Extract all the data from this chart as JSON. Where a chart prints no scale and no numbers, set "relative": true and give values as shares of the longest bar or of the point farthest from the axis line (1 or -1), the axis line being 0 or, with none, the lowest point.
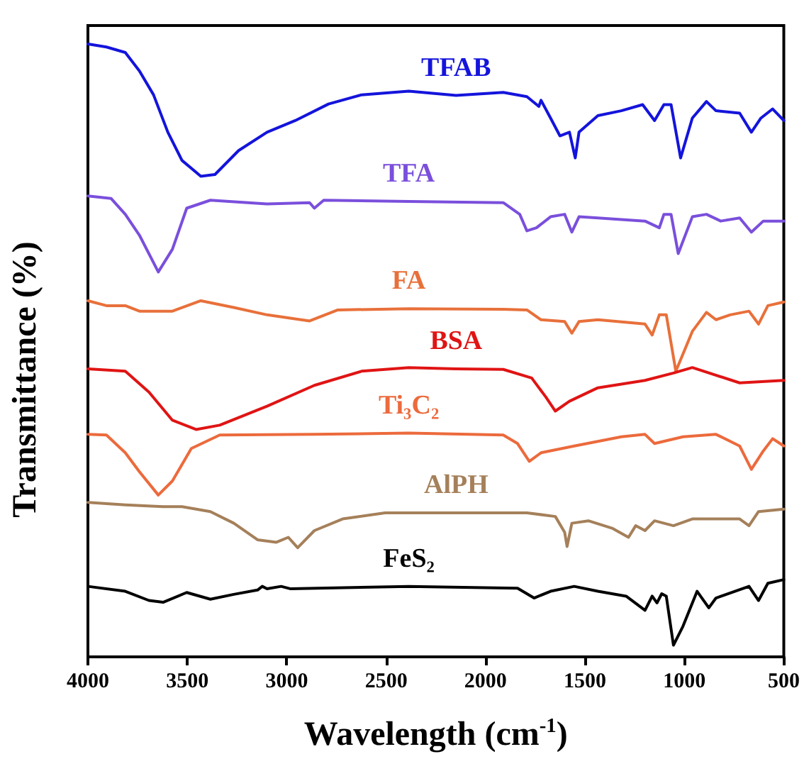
{
  "chart_data": {
    "type": "line",
    "relative": true,
    "xlabel": "Wavelength (cm$^{-1}$)",
    "ylabel": "Transmittance (%)",
    "xlim": [
      4000,
      500
    ],
    "xticks": [
      4000,
      3500,
      3000,
      2500,
      2000,
      1500,
      1000,
      500
    ],
    "grid": false,
    "legend": false,
    "series": [
      {
        "name": "TFAB",
        "color": "#1414dc",
        "x": [
          4000,
          3907,
          3812,
          3741,
          3670,
          3598,
          3527,
          3432,
          3361,
          3242,
          3099,
          2957,
          2790,
          2624,
          2386,
          2148,
          1911,
          1792,
          1732,
          1721,
          1673,
          1626,
          1578,
          1549,
          1530,
          1435,
          1317,
          1210,
          1150,
          1103,
          1067,
          1019,
          960,
          889,
          841,
          722,
          663,
          615,
          556,
          500
        ],
        "values": [
          1.0,
          0.995,
          0.986,
          0.956,
          0.917,
          0.856,
          0.81,
          0.784,
          0.787,
          0.826,
          0.856,
          0.875,
          0.902,
          0.917,
          0.923,
          0.916,
          0.921,
          0.914,
          0.898,
          0.908,
          0.879,
          0.85,
          0.856,
          0.814,
          0.856,
          0.883,
          0.891,
          0.901,
          0.875,
          0.901,
          0.901,
          0.814,
          0.879,
          0.906,
          0.891,
          0.887,
          0.856,
          0.879,
          0.894,
          0.875
        ]
      },
      {
        "name": "TFA",
        "color": "#7a4fdc",
        "x": [
          4000,
          3884,
          3812,
          3741,
          3646,
          3575,
          3503,
          3384,
          3099,
          2885,
          2861,
          2814,
          2386,
          1911,
          1828,
          1792,
          1744,
          1673,
          1602,
          1566,
          1530,
          1435,
          1198,
          1126,
          1103,
          1067,
          1031,
          960,
          889,
          817,
          722,
          663,
          603,
          500
        ],
        "values": [
          0.752,
          0.748,
          0.722,
          0.688,
          0.628,
          0.665,
          0.732,
          0.745,
          0.739,
          0.741,
          0.732,
          0.745,
          0.743,
          0.741,
          0.722,
          0.695,
          0.7,
          0.718,
          0.722,
          0.693,
          0.718,
          0.716,
          0.711,
          0.7,
          0.722,
          0.722,
          0.658,
          0.718,
          0.722,
          0.711,
          0.716,
          0.693,
          0.711,
          0.711
        ]
      },
      {
        "name": "FA",
        "color": "#e8703a",
        "x": [
          4000,
          3907,
          3812,
          3741,
          3575,
          3432,
          3266,
          3099,
          2885,
          2743,
          2386,
          1911,
          1792,
          1721,
          1602,
          1566,
          1530,
          1435,
          1198,
          1162,
          1126,
          1091,
          1043,
          960,
          889,
          841,
          770,
          675,
          627,
          580,
          500
        ],
        "values": [
          0.581,
          0.573,
          0.573,
          0.564,
          0.564,
          0.581,
          0.57,
          0.558,
          0.548,
          0.566,
          0.568,
          0.567,
          0.566,
          0.55,
          0.547,
          0.528,
          0.547,
          0.55,
          0.543,
          0.525,
          0.558,
          0.558,
          0.466,
          0.531,
          0.562,
          0.55,
          0.558,
          0.564,
          0.543,
          0.573,
          0.579
        ]
      },
      {
        "name": "BSA",
        "color": "#e01414",
        "x": [
          4000,
          3812,
          3693,
          3575,
          3456,
          3337,
          3099,
          2861,
          2624,
          2386,
          2148,
          1911,
          1768,
          1697,
          1649,
          1578,
          1435,
          1198,
          1055,
          960,
          722,
          500
        ],
        "values": [
          0.47,
          0.466,
          0.432,
          0.386,
          0.371,
          0.378,
          0.409,
          0.443,
          0.466,
          0.472,
          0.47,
          0.469,
          0.455,
          0.424,
          0.401,
          0.417,
          0.439,
          0.451,
          0.463,
          0.472,
          0.447,
          0.451
        ]
      },
      {
        "name": "Ti₃C₂",
        "color": "#ec6a3c",
        "x": [
          4000,
          3907,
          3812,
          3741,
          3646,
          3575,
          3480,
          3337,
          2861,
          2386,
          1911,
          1839,
          1780,
          1721,
          1554,
          1317,
          1198,
          1150,
          1007,
          841,
          722,
          663,
          603,
          556,
          500
        ],
        "values": [
          0.363,
          0.362,
          0.333,
          0.302,
          0.264,
          0.287,
          0.34,
          0.362,
          0.363,
          0.365,
          0.362,
          0.348,
          0.319,
          0.333,
          0.344,
          0.359,
          0.363,
          0.348,
          0.359,
          0.363,
          0.344,
          0.306,
          0.336,
          0.356,
          0.344
        ]
      },
      {
        "name": "AlPH",
        "color": "#a5805a",
        "x": [
          4000,
          3812,
          3622,
          3527,
          3384,
          3266,
          3147,
          3052,
          2992,
          2945,
          2861,
          2719,
          2505,
          2148,
          1792,
          1649,
          1602,
          1590,
          1566,
          1483,
          1364,
          1281,
          1245,
          1198,
          1150,
          1055,
          960,
          722,
          675,
          627,
          500
        ],
        "values": [
          0.252,
          0.248,
          0.245,
          0.245,
          0.237,
          0.218,
          0.191,
          0.187,
          0.195,
          0.178,
          0.206,
          0.225,
          0.235,
          0.235,
          0.235,
          0.229,
          0.203,
          0.18,
          0.218,
          0.222,
          0.21,
          0.195,
          0.214,
          0.206,
          0.222,
          0.214,
          0.225,
          0.225,
          0.214,
          0.237,
          0.241
        ]
      },
      {
        "name": "FeS₂",
        "color": "#000000",
        "x": [
          4000,
          3812,
          3693,
          3622,
          3503,
          3384,
          3266,
          3147,
          3123,
          3099,
          3028,
          2980,
          2386,
          1839,
          1756,
          1673,
          1554,
          1435,
          1293,
          1198,
          1162,
          1138,
          1114,
          1091,
          1055,
          1007,
          936,
          877,
          841,
          675,
          627,
          580,
          500
        ],
        "values": [
          0.115,
          0.107,
          0.092,
          0.089,
          0.105,
          0.094,
          0.102,
          0.109,
          0.115,
          0.111,
          0.115,
          0.111,
          0.115,
          0.112,
          0.096,
          0.107,
          0.115,
          0.107,
          0.099,
          0.076,
          0.099,
          0.088,
          0.103,
          0.099,
          0.019,
          0.05,
          0.107,
          0.08,
          0.096,
          0.115,
          0.092,
          0.12,
          0.126
        ]
      }
    ]
  }
}
